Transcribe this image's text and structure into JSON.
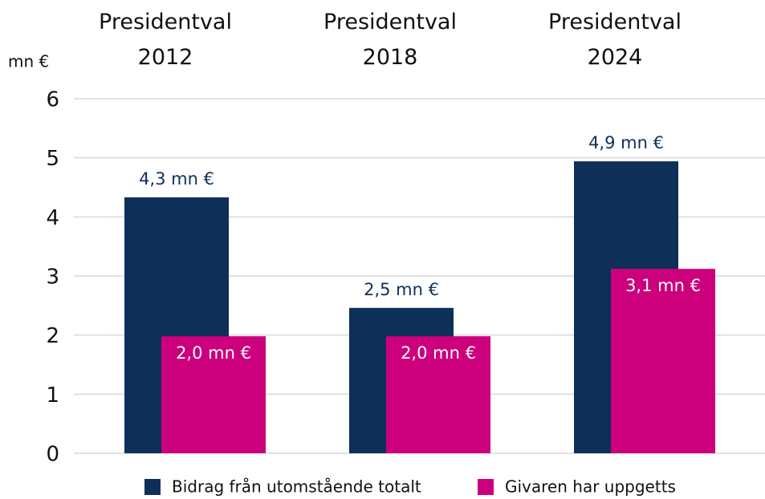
{
  "chart_data": {
    "type": "bar",
    "y_label": "mn €",
    "categories": [
      "Presidentval 2012",
      "Presidentval 2018",
      "Presidentval 2024"
    ],
    "series": [
      {
        "name": "Bidrag från utomstående totalt",
        "color": "#0e3058",
        "values": [
          4.33,
          2.46,
          4.94
        ],
        "value_labels": [
          "4,3 mn €",
          "2,5 mn €",
          "4,9 mn €"
        ]
      },
      {
        "name": "Givaren har uppgetts",
        "color": "#cc007c",
        "values": [
          1.98,
          1.98,
          3.12
        ],
        "value_labels": [
          "2,0 mn €",
          "2,0 mn €",
          "3,1 mn €"
        ]
      }
    ],
    "ylim": [
      0,
      6
    ],
    "yticks": [
      0,
      1,
      2,
      3,
      4,
      5,
      6
    ],
    "grid": true,
    "legend": "bottom"
  }
}
